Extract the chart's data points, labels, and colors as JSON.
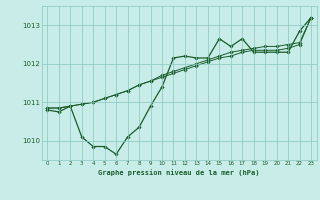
{
  "title": "Graphe pression niveau de la mer (hPa)",
  "background_color": "#c8ede8",
  "plot_bg_color": "#c8ede8",
  "grid_color": "#88c8c0",
  "line_color": "#1a5c2a",
  "text_color": "#1a5c2a",
  "xlim": [
    -0.5,
    23.5
  ],
  "ylim": [
    1009.5,
    1013.5
  ],
  "yticks": [
    1010,
    1011,
    1012,
    1013
  ],
  "xticks": [
    0,
    1,
    2,
    3,
    4,
    5,
    6,
    7,
    8,
    9,
    10,
    11,
    12,
    13,
    14,
    15,
    16,
    17,
    18,
    19,
    20,
    21,
    22,
    23
  ],
  "series1_x": [
    0,
    1,
    2,
    3,
    4,
    5,
    6,
    7,
    8,
    9,
    10,
    11,
    12,
    13,
    14,
    15,
    16,
    17,
    18,
    19,
    20,
    21,
    22,
    23
  ],
  "series1_y": [
    1010.8,
    1010.75,
    1010.9,
    1010.1,
    1009.85,
    1009.85,
    1009.65,
    1010.1,
    1010.35,
    1010.9,
    1011.4,
    1012.15,
    1012.2,
    1012.15,
    1012.15,
    1012.65,
    1012.45,
    1012.65,
    1012.3,
    1012.3,
    1012.3,
    1012.3,
    1012.85,
    1013.2
  ],
  "series2_x": [
    0,
    1,
    2,
    3,
    4,
    5,
    6,
    7,
    8,
    9,
    10,
    11,
    12,
    13,
    14,
    15,
    16,
    17,
    18,
    19,
    20,
    21,
    22,
    23
  ],
  "series2_y": [
    1010.85,
    1010.85,
    1010.9,
    1010.95,
    1011.0,
    1011.1,
    1011.2,
    1011.3,
    1011.45,
    1011.55,
    1011.7,
    1011.8,
    1011.9,
    1012.0,
    1012.1,
    1012.2,
    1012.3,
    1012.35,
    1012.4,
    1012.45,
    1012.45,
    1012.5,
    1012.55,
    1013.2
  ],
  "series3_x": [
    0,
    1,
    2,
    3,
    4,
    5,
    6,
    7,
    8,
    9,
    10,
    11,
    12,
    13,
    14,
    15,
    16,
    17,
    18,
    19,
    20,
    21,
    22,
    23
  ],
  "series3_y": [
    1010.85,
    1010.85,
    1010.9,
    1010.95,
    1011.0,
    1011.1,
    1011.2,
    1011.3,
    1011.45,
    1011.55,
    1011.65,
    1011.75,
    1011.85,
    1011.95,
    1012.05,
    1012.15,
    1012.2,
    1012.3,
    1012.35,
    1012.35,
    1012.35,
    1012.4,
    1012.5,
    1013.2
  ]
}
